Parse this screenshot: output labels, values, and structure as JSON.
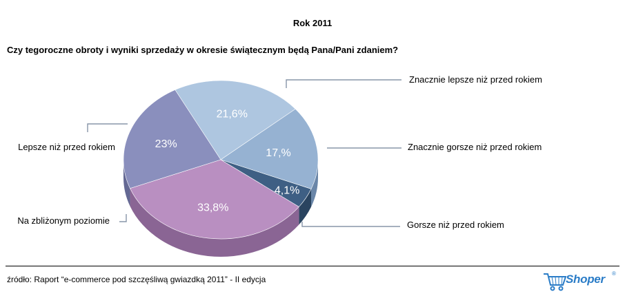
{
  "chart_data": {
    "type": "pie",
    "title": "Rok 2011",
    "subtitle": "Czy tegoroczne obroty i wyniki sprzedaży w okresie świątecznym będą Pana/Pani zdaniem?",
    "slices": [
      {
        "label": "Znacznie lepsze niż przed rokiem",
        "value": 21.6,
        "value_label": "21,6%",
        "color": "#aec6e0",
        "side": "#7f99b8"
      },
      {
        "label": "Znacznie gorsze niż przed rokiem",
        "value": 17.0,
        "value_label": "17,%",
        "color": "#96b2d2",
        "side": "#6a86a8"
      },
      {
        "label": "Gorsze niż przed rokiem",
        "value": 4.1,
        "value_label": "4,1%",
        "color": "#3e5f84",
        "side": "#2a4460"
      },
      {
        "label": "Na zbliżonym poziomie",
        "value": 33.8,
        "value_label": "33,8%",
        "color": "#b98fc1",
        "side": "#8a6594"
      },
      {
        "label": "Lepsze niż przed rokiem",
        "value": 23.0,
        "value_label": "23%",
        "color": "#8a8fbd",
        "side": "#646893"
      }
    ],
    "legend_placement": "callouts around pie"
  },
  "footer": {
    "source": "źródło: Raport “e-commerce pod szczęśliwą gwiazdką 2011” - II edycja",
    "logo_text": "Shoper",
    "logo_mark": "®"
  },
  "icons": {
    "logo": "shopping-cart-icon"
  }
}
